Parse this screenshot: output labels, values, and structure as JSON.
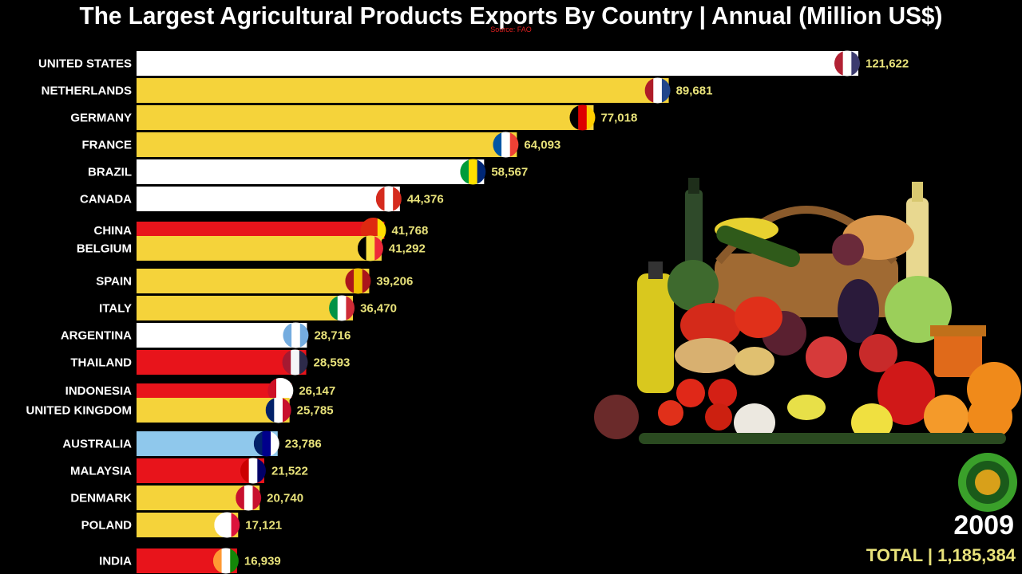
{
  "header": {
    "title": "The Largest Agricultural Products Exports By Country | Annual (Million US$)",
    "source": "Source: FAO"
  },
  "footer": {
    "year": "2009",
    "total": "TOTAL | 1,185,384"
  },
  "colors": {
    "background": "#000000",
    "value_text": "#e8e27a",
    "white_bar": "#ffffff",
    "yellow_bar": "#f5d33a",
    "red_bar": "#e8141b",
    "lightblue_bar": "#8fc8ec"
  },
  "chart_data": {
    "type": "bar",
    "orientation": "horizontal",
    "title": "The Largest Agricultural Products Exports By Country | Annual (Million US$)",
    "categories": [
      "UNITED STATES",
      "NETHERLANDS",
      "GERMANY",
      "FRANCE",
      "BRAZIL",
      "CANADA",
      "CHINA",
      "BELGIUM",
      "SPAIN",
      "ITALY",
      "ARGENTINA",
      "THAILAND",
      "INDONESIA",
      "UNITED KINGDOM",
      "AUSTRALIA",
      "MALAYSIA",
      "DENMARK",
      "POLAND",
      "INDIA"
    ],
    "values": [
      121622,
      89681,
      77018,
      64093,
      58567,
      44376,
      41768,
      41292,
      39206,
      36470,
      28716,
      28593,
      26147,
      25785,
      23786,
      21522,
      20740,
      17121,
      16939
    ],
    "value_labels": [
      "121,622",
      "89,681",
      "77,018",
      "64,093",
      "58,567",
      "44,376",
      "41,768",
      "41,292",
      "39,206",
      "36,470",
      "28,716",
      "28,593",
      "26,147",
      "25,785",
      "23,786",
      "21,522",
      "20,740",
      "17,121",
      "16,939"
    ],
    "bar_colors": [
      "white",
      "yellow",
      "yellow",
      "yellow",
      "white",
      "white",
      "red",
      "yellow",
      "yellow",
      "yellow",
      "white",
      "red",
      "red",
      "yellow",
      "lightblue",
      "red",
      "yellow",
      "yellow",
      "red"
    ],
    "icons": [
      "flag-usa-icon",
      "flag-netherlands-icon",
      "flag-germany-icon",
      "flag-france-icon",
      "flag-brazil-icon",
      "flag-canada-icon",
      "flag-china-icon",
      "flag-belgium-icon",
      "flag-spain-icon",
      "flag-italy-icon",
      "flag-argentina-icon",
      "flag-thailand-icon",
      "flag-indonesia-icon",
      "flag-uk-icon",
      "flag-australia-icon",
      "flag-malaysia-icon",
      "flag-denmark-icon",
      "flag-poland-icon",
      "flag-india-icon"
    ],
    "xlim": [
      0,
      121622
    ],
    "legend": "none",
    "grid": false
  }
}
